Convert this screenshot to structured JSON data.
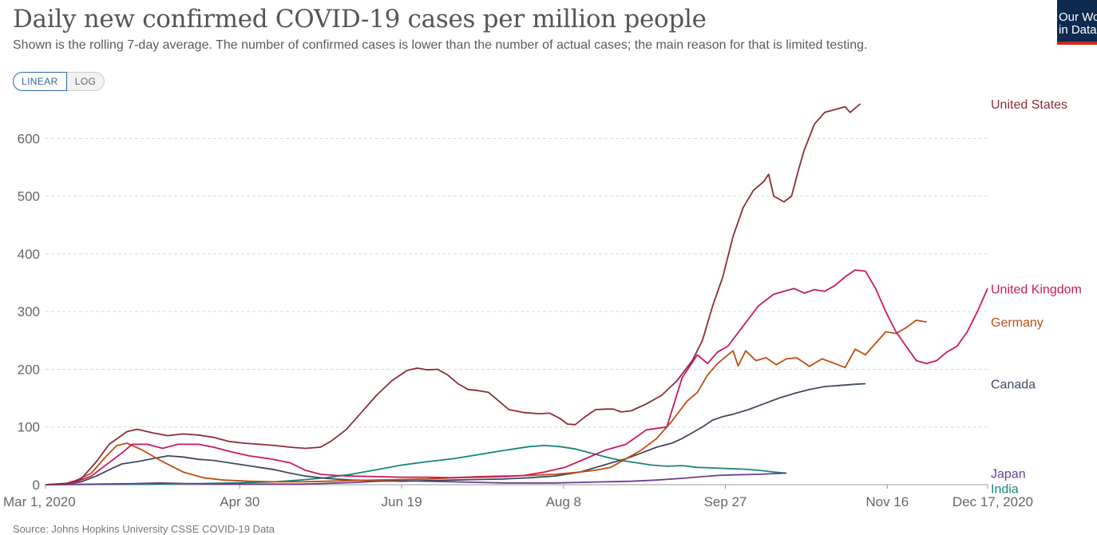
{
  "header": {
    "title": "Daily new confirmed COVID-19 cases per million people",
    "subtitle": "Shown is the rolling 7-day average. The number of confirmed cases is lower than the number of actual cases; the main reason for that is limited testing.",
    "logo_line1": "Our World",
    "logo_line2": "in Data"
  },
  "scale_toggle": {
    "linear_label": "LINEAR",
    "log_label": "LOG",
    "selected": "LINEAR"
  },
  "chart_data": {
    "type": "line",
    "ylim": [
      0,
      660
    ],
    "yticks": [
      0,
      100,
      200,
      300,
      400,
      500,
      600
    ],
    "xticks": [
      {
        "day": 0,
        "label": "Mar 1, 2020"
      },
      {
        "day": 60,
        "label": "Apr 30"
      },
      {
        "day": 110,
        "label": "Jun 19"
      },
      {
        "day": 160,
        "label": "Aug 8"
      },
      {
        "day": 210,
        "label": "Sep 27"
      },
      {
        "day": 260,
        "label": "Nov 16"
      },
      {
        "day": 291,
        "label": "Dec 17, 2020"
      }
    ],
    "grid": "horizontal dashed",
    "series": [
      {
        "name": "United States",
        "color": "#8c2d37",
        "points": [
          [
            0,
            0
          ],
          [
            8,
            2
          ],
          [
            14,
            10
          ],
          [
            20,
            40
          ],
          [
            25,
            70
          ],
          [
            32,
            92
          ],
          [
            36,
            96
          ],
          [
            42,
            90
          ],
          [
            48,
            85
          ],
          [
            54,
            88
          ],
          [
            60,
            86
          ],
          [
            66,
            82
          ],
          [
            72,
            75
          ],
          [
            78,
            72
          ],
          [
            84,
            70
          ],
          [
            90,
            68
          ],
          [
            96,
            65
          ],
          [
            102,
            63
          ],
          [
            108,
            65
          ],
          [
            112,
            75
          ],
          [
            118,
            95
          ],
          [
            124,
            125
          ],
          [
            130,
            155
          ],
          [
            136,
            180
          ],
          [
            142,
            198
          ],
          [
            146,
            202
          ],
          [
            150,
            199
          ],
          [
            154,
            200
          ],
          [
            158,
            190
          ],
          [
            162,
            175
          ],
          [
            166,
            165
          ],
          [
            170,
            163
          ],
          [
            174,
            160
          ],
          [
            178,
            145
          ],
          [
            182,
            130
          ],
          [
            188,
            125
          ],
          [
            194,
            123
          ],
          [
            198,
            124
          ],
          [
            202,
            115
          ],
          [
            205,
            105
          ],
          [
            208,
            104
          ],
          [
            212,
            118
          ],
          [
            216,
            130
          ],
          [
            220,
            131
          ],
          [
            223,
            131
          ],
          [
            226,
            126
          ],
          [
            230,
            128
          ],
          [
            236,
            140
          ],
          [
            242,
            155
          ],
          [
            248,
            180
          ],
          [
            254,
            215
          ],
          [
            258,
            250
          ],
          [
            262,
            310
          ],
          [
            266,
            360
          ],
          [
            270,
            430
          ],
          [
            274,
            480
          ],
          [
            278,
            510
          ],
          [
            282,
            525
          ],
          [
            284,
            538
          ],
          [
            286,
            500
          ],
          [
            290,
            490
          ],
          [
            293,
            500
          ],
          [
            296,
            550
          ],
          [
            298,
            580
          ],
          [
            302,
            625
          ],
          [
            306,
            645
          ],
          [
            310,
            650
          ],
          [
            314,
            655
          ],
          [
            316,
            645
          ],
          [
            320,
            660
          ]
        ]
      },
      {
        "name": "United Kingdom",
        "color": "#c8195e",
        "points": [
          [
            0,
            0
          ],
          [
            10,
            2
          ],
          [
            18,
            15
          ],
          [
            24,
            35
          ],
          [
            30,
            55
          ],
          [
            34,
            70
          ],
          [
            40,
            70
          ],
          [
            46,
            63
          ],
          [
            52,
            70
          ],
          [
            60,
            70
          ],
          [
            66,
            65
          ],
          [
            72,
            58
          ],
          [
            80,
            50
          ],
          [
            88,
            45
          ],
          [
            96,
            38
          ],
          [
            102,
            25
          ],
          [
            108,
            18
          ],
          [
            114,
            16
          ],
          [
            120,
            15
          ],
          [
            130,
            14
          ],
          [
            140,
            13
          ],
          [
            150,
            13
          ],
          [
            160,
            12
          ],
          [
            170,
            13
          ],
          [
            180,
            14
          ],
          [
            188,
            16
          ],
          [
            196,
            22
          ],
          [
            204,
            30
          ],
          [
            212,
            45
          ],
          [
            220,
            60
          ],
          [
            228,
            70
          ],
          [
            236,
            95
          ],
          [
            244,
            100
          ],
          [
            250,
            185
          ],
          [
            256,
            225
          ],
          [
            260,
            210
          ],
          [
            264,
            230
          ],
          [
            268,
            240
          ],
          [
            274,
            275
          ],
          [
            280,
            310
          ],
          [
            286,
            330
          ],
          [
            290,
            335
          ],
          [
            294,
            340
          ],
          [
            298,
            332
          ],
          [
            302,
            338
          ],
          [
            306,
            335
          ],
          [
            310,
            345
          ],
          [
            314,
            360
          ],
          [
            318,
            372
          ],
          [
            322,
            370
          ],
          [
            326,
            340
          ],
          [
            330,
            300
          ],
          [
            334,
            265
          ],
          [
            338,
            240
          ],
          [
            342,
            215
          ],
          [
            346,
            210
          ],
          [
            350,
            215
          ],
          [
            354,
            230
          ],
          [
            358,
            240
          ],
          [
            362,
            265
          ],
          [
            366,
            300
          ],
          [
            370,
            340
          ]
        ]
      },
      {
        "name": "Germany",
        "color": "#c04d12",
        "points": [
          [
            0,
            0
          ],
          [
            10,
            3
          ],
          [
            18,
            20
          ],
          [
            24,
            50
          ],
          [
            28,
            68
          ],
          [
            32,
            72
          ],
          [
            38,
            60
          ],
          [
            46,
            40
          ],
          [
            54,
            22
          ],
          [
            62,
            12
          ],
          [
            70,
            8
          ],
          [
            80,
            6
          ],
          [
            90,
            5
          ],
          [
            100,
            5
          ],
          [
            110,
            6
          ],
          [
            120,
            7
          ],
          [
            130,
            8
          ],
          [
            140,
            9
          ],
          [
            150,
            10
          ],
          [
            160,
            12
          ],
          [
            170,
            14
          ],
          [
            180,
            15
          ],
          [
            190,
            16
          ],
          [
            200,
            18
          ],
          [
            210,
            22
          ],
          [
            216,
            25
          ],
          [
            222,
            30
          ],
          [
            228,
            45
          ],
          [
            234,
            60
          ],
          [
            240,
            80
          ],
          [
            246,
            110
          ],
          [
            252,
            145
          ],
          [
            256,
            160
          ],
          [
            260,
            190
          ],
          [
            264,
            210
          ],
          [
            268,
            225
          ],
          [
            270,
            232
          ],
          [
            272,
            206
          ],
          [
            275,
            232
          ],
          [
            279,
            215
          ],
          [
            283,
            220
          ],
          [
            287,
            208
          ],
          [
            291,
            218
          ],
          [
            295,
            220
          ],
          [
            300,
            205
          ],
          [
            305,
            218
          ],
          [
            310,
            210
          ],
          [
            314,
            203
          ],
          [
            318,
            235
          ],
          [
            322,
            225
          ],
          [
            326,
            245
          ],
          [
            330,
            265
          ],
          [
            334,
            262
          ],
          [
            338,
            272
          ],
          [
            342,
            285
          ],
          [
            346,
            282
          ]
        ]
      },
      {
        "name": "Canada",
        "color": "#3f4c5e",
        "points": [
          [
            0,
            0
          ],
          [
            8,
            1
          ],
          [
            14,
            5
          ],
          [
            20,
            15
          ],
          [
            26,
            28
          ],
          [
            30,
            36
          ],
          [
            36,
            40
          ],
          [
            42,
            45
          ],
          [
            48,
            50
          ],
          [
            54,
            48
          ],
          [
            60,
            44
          ],
          [
            66,
            42
          ],
          [
            72,
            38
          ],
          [
            78,
            34
          ],
          [
            84,
            30
          ],
          [
            90,
            26
          ],
          [
            96,
            20
          ],
          [
            102,
            15
          ],
          [
            110,
            11
          ],
          [
            120,
            8
          ],
          [
            130,
            7
          ],
          [
            140,
            6
          ],
          [
            150,
            7
          ],
          [
            160,
            8
          ],
          [
            170,
            9
          ],
          [
            180,
            10
          ],
          [
            190,
            12
          ],
          [
            200,
            15
          ],
          [
            210,
            22
          ],
          [
            220,
            35
          ],
          [
            228,
            45
          ],
          [
            234,
            55
          ],
          [
            240,
            65
          ],
          [
            246,
            72
          ],
          [
            250,
            80
          ],
          [
            254,
            90
          ],
          [
            258,
            100
          ],
          [
            262,
            112
          ],
          [
            266,
            118
          ],
          [
            270,
            122
          ],
          [
            276,
            130
          ],
          [
            282,
            140
          ],
          [
            288,
            150
          ],
          [
            294,
            158
          ],
          [
            300,
            165
          ],
          [
            306,
            170
          ],
          [
            312,
            172
          ],
          [
            318,
            174
          ],
          [
            322,
            175
          ]
        ]
      },
      {
        "name": "Japan",
        "color": "#6d3e91",
        "points": [
          [
            0,
            0
          ],
          [
            20,
            1
          ],
          [
            35,
            2
          ],
          [
            45,
            3
          ],
          [
            55,
            2
          ],
          [
            70,
            1
          ],
          [
            85,
            1
          ],
          [
            100,
            1
          ],
          [
            108,
            2
          ],
          [
            115,
            3
          ],
          [
            122,
            4
          ],
          [
            130,
            6
          ],
          [
            140,
            7
          ],
          [
            150,
            6
          ],
          [
            160,
            5
          ],
          [
            170,
            4
          ],
          [
            180,
            3
          ],
          [
            190,
            3
          ],
          [
            200,
            3
          ],
          [
            210,
            4
          ],
          [
            220,
            5
          ],
          [
            230,
            6
          ],
          [
            240,
            8
          ],
          [
            250,
            11
          ],
          [
            258,
            14
          ],
          [
            264,
            16
          ],
          [
            270,
            17
          ],
          [
            280,
            18
          ],
          [
            291,
            20
          ]
        ]
      },
      {
        "name": "India",
        "color": "#18857a",
        "points": [
          [
            0,
            0
          ],
          [
            20,
            0.5
          ],
          [
            40,
            1
          ],
          [
            60,
            2
          ],
          [
            75,
            3
          ],
          [
            90,
            5
          ],
          [
            100,
            8
          ],
          [
            110,
            12
          ],
          [
            120,
            18
          ],
          [
            130,
            26
          ],
          [
            140,
            34
          ],
          [
            150,
            40
          ],
          [
            160,
            45
          ],
          [
            170,
            52
          ],
          [
            178,
            58
          ],
          [
            184,
            62
          ],
          [
            190,
            66
          ],
          [
            196,
            68
          ],
          [
            202,
            66
          ],
          [
            208,
            62
          ],
          [
            214,
            55
          ],
          [
            220,
            48
          ],
          [
            226,
            42
          ],
          [
            232,
            38
          ],
          [
            238,
            34
          ],
          [
            244,
            32
          ],
          [
            250,
            33
          ],
          [
            256,
            30
          ],
          [
            262,
            29
          ],
          [
            268,
            28
          ],
          [
            274,
            27
          ],
          [
            280,
            25
          ],
          [
            286,
            22
          ],
          [
            291,
            20
          ]
        ]
      }
    ]
  },
  "source_note": "Source: Johns Hopkins University CSSE COVID-19 Data"
}
